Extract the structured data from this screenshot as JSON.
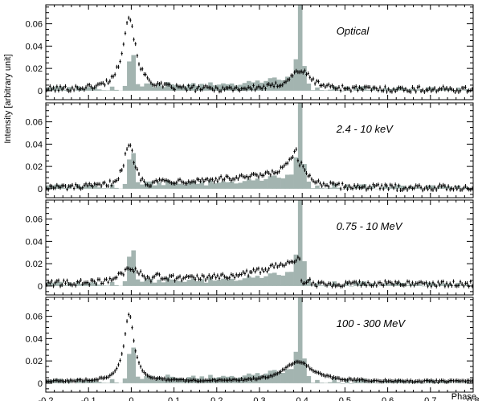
{
  "chart_data": {
    "type": "histogram-with-scatter",
    "ylabel": "Intensity [arbitrary unit]",
    "xlabel": "Phase",
    "xlim": [
      -0.2,
      0.8
    ],
    "ylim": [
      -0.008,
      0.077
    ],
    "x_ticks": [
      -0.2,
      -0.1,
      0,
      0.1,
      0.2,
      0.3,
      0.4,
      0.5,
      0.6,
      0.7,
      0.8
    ],
    "x_tick_labels": [
      "-0.2",
      "-0.1",
      "0",
      "0.1",
      "0.2",
      "0.3",
      "0.4",
      "0.5",
      "0.6",
      "0.7",
      "0.8"
    ],
    "y_ticks": [
      0,
      0.02,
      0.04,
      0.06
    ],
    "y_tick_labels": [
      "0",
      "0.02",
      "0.04",
      "0.06"
    ],
    "histogram": {
      "name": "reference light curve (gray bars)",
      "bin_width": 0.01,
      "peaks": [
        {
          "phase": 0.0,
          "height": 0.048
        },
        {
          "phase": 0.395,
          "height": 0.072
        }
      ],
      "baseline": 0.002
    },
    "panels": [
      {
        "label": "Optical",
        "series": "optical",
        "peaks": [
          {
            "phase": -0.005,
            "height": 0.065
          },
          {
            "phase": 0.395,
            "height": 0.017
          }
        ]
      },
      {
        "label": "2.4 - 10 keV",
        "series": "xray",
        "peaks": [
          {
            "phase": -0.005,
            "height": 0.038
          },
          {
            "phase": 0.39,
            "height": 0.022
          }
        ]
      },
      {
        "label": "0.75 - 10 MeV",
        "series": "mev",
        "peaks": [
          {
            "phase": 0.0,
            "height": 0.014
          },
          {
            "phase": 0.385,
            "height": 0.024
          }
        ]
      },
      {
        "label": "100 - 300 MeV",
        "series": "gev",
        "peaks": [
          {
            "phase": -0.005,
            "height": 0.06
          },
          {
            "phase": 0.39,
            "height": 0.018
          }
        ]
      }
    ]
  },
  "colors": {
    "histogram_fill": "#a3b4b0",
    "points": "#000000",
    "frame": "#000000"
  }
}
